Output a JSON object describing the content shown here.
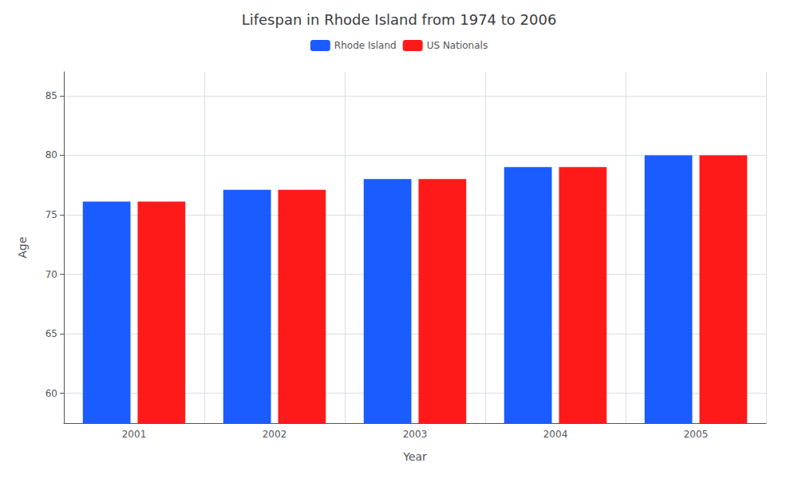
{
  "chart_data": {
    "type": "bar",
    "title": "Lifespan in Rhode Island from 1974 to 2006",
    "xlabel": "Year",
    "ylabel": "Age",
    "categories": [
      "2001",
      "2002",
      "2003",
      "2004",
      "2005"
    ],
    "series": [
      {
        "name": "Rhode Island",
        "color": "#1a5cff",
        "values": [
          76.1,
          77.1,
          78.0,
          79.0,
          80.0
        ]
      },
      {
        "name": "US Nationals",
        "color": "#ff1a1a",
        "values": [
          76.1,
          77.1,
          78.0,
          79.0,
          80.0
        ]
      }
    ],
    "ylim": [
      57.5,
      87
    ],
    "yticks": [
      60,
      65,
      70,
      75,
      80,
      85
    ],
    "grid": true,
    "legend": "top"
  }
}
